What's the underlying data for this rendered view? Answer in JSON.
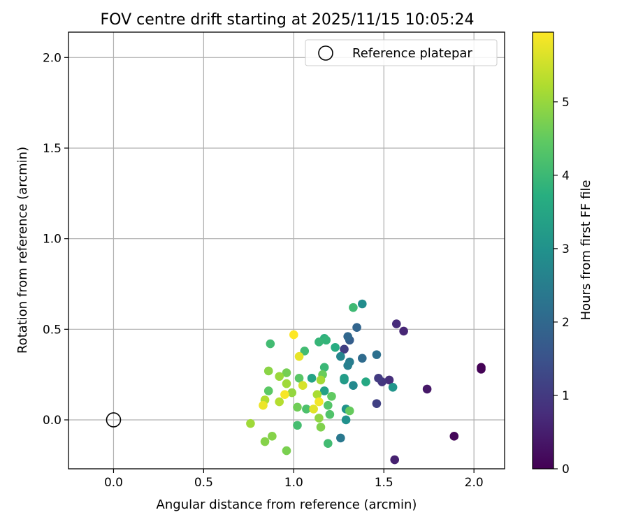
{
  "chart_data": {
    "type": "scatter",
    "title": "FOV centre drift starting at 2025/11/15 10:05:24",
    "xlabel": "Angular distance from reference (arcmin)",
    "ylabel": "Rotation from reference (arcmin)",
    "xlim": [
      -0.25,
      2.17
    ],
    "ylim": [
      -0.27,
      2.14
    ],
    "xticks": [
      0.0,
      0.5,
      1.0,
      1.5,
      2.0
    ],
    "xtick_labels": [
      "0.0",
      "0.5",
      "1.0",
      "1.5",
      "2.0"
    ],
    "yticks": [
      0.0,
      0.5,
      1.0,
      1.5,
      2.0
    ],
    "ytick_labels": [
      "0.0",
      "0.5",
      "1.0",
      "1.5",
      "2.0"
    ],
    "grid": true,
    "legend": {
      "placement": "top-right",
      "entries": [
        {
          "label": "Reference platepar",
          "marker": "open-circle",
          "color": "#000000"
        }
      ]
    },
    "reference_point": {
      "x": 0.0,
      "y": 0.0
    },
    "colorbar": {
      "label": "Hours from first FF file",
      "colormap": "viridis",
      "range": [
        0,
        5.95
      ],
      "ticks": [
        0,
        1,
        2,
        3,
        4,
        5
      ],
      "tick_labels": [
        "0",
        "1",
        "2",
        "3",
        "4",
        "5"
      ]
    },
    "points": [
      {
        "x": 2.04,
        "y": 0.29,
        "t": 0.0
      },
      {
        "x": 2.04,
        "y": 0.28,
        "t": 0.03
      },
      {
        "x": 1.89,
        "y": -0.09,
        "t": 0.1
      },
      {
        "x": 1.74,
        "y": 0.17,
        "t": 0.4
      },
      {
        "x": 1.56,
        "y": -0.22,
        "t": 0.55
      },
      {
        "x": 1.61,
        "y": 0.49,
        "t": 0.65
      },
      {
        "x": 1.57,
        "y": 0.53,
        "t": 0.75
      },
      {
        "x": 1.53,
        "y": 0.22,
        "t": 0.8
      },
      {
        "x": 1.49,
        "y": 0.21,
        "t": 0.95
      },
      {
        "x": 1.47,
        "y": 0.23,
        "t": 1.05
      },
      {
        "x": 1.46,
        "y": 0.09,
        "t": 1.15
      },
      {
        "x": 1.28,
        "y": 0.39,
        "t": 1.1
      },
      {
        "x": 1.31,
        "y": 0.44,
        "t": 1.8
      },
      {
        "x": 1.35,
        "y": 0.51,
        "t": 1.95
      },
      {
        "x": 1.3,
        "y": 0.46,
        "t": 2.0
      },
      {
        "x": 1.38,
        "y": 0.34,
        "t": 2.1
      },
      {
        "x": 1.46,
        "y": 0.36,
        "t": 2.2
      },
      {
        "x": 1.26,
        "y": -0.1,
        "t": 2.4
      },
      {
        "x": 1.31,
        "y": 0.32,
        "t": 2.5
      },
      {
        "x": 1.3,
        "y": 0.3,
        "t": 2.6
      },
      {
        "x": 1.26,
        "y": 0.35,
        "t": 2.7
      },
      {
        "x": 1.33,
        "y": 0.19,
        "t": 2.8
      },
      {
        "x": 1.38,
        "y": 0.64,
        "t": 2.9
      },
      {
        "x": 1.29,
        "y": 0.0,
        "t": 3.0
      },
      {
        "x": 1.29,
        "y": 0.06,
        "t": 3.05
      },
      {
        "x": 1.55,
        "y": 0.18,
        "t": 3.1
      },
      {
        "x": 1.28,
        "y": 0.22,
        "t": 3.2
      },
      {
        "x": 1.28,
        "y": 0.23,
        "t": 3.3
      },
      {
        "x": 1.17,
        "y": 0.16,
        "t": 3.4
      },
      {
        "x": 1.1,
        "y": 0.23,
        "t": 3.45
      },
      {
        "x": 1.4,
        "y": 0.21,
        "t": 3.6
      },
      {
        "x": 1.23,
        "y": 0.4,
        "t": 3.7
      },
      {
        "x": 1.17,
        "y": 0.45,
        "t": 3.8
      },
      {
        "x": 1.18,
        "y": 0.44,
        "t": 3.9
      },
      {
        "x": 1.14,
        "y": 0.43,
        "t": 3.95
      },
      {
        "x": 1.17,
        "y": 0.29,
        "t": 4.0
      },
      {
        "x": 1.06,
        "y": 0.38,
        "t": 4.1
      },
      {
        "x": 1.33,
        "y": 0.62,
        "t": 4.05
      },
      {
        "x": 0.87,
        "y": 0.42,
        "t": 4.1
      },
      {
        "x": 1.19,
        "y": -0.13,
        "t": 4.1
      },
      {
        "x": 1.02,
        "y": -0.03,
        "t": 4.15
      },
      {
        "x": 1.07,
        "y": 0.06,
        "t": 4.25
      },
      {
        "x": 1.2,
        "y": 0.03,
        "t": 4.3
      },
      {
        "x": 1.19,
        "y": 0.08,
        "t": 4.35
      },
      {
        "x": 1.03,
        "y": 0.23,
        "t": 4.4
      },
      {
        "x": 0.86,
        "y": 0.16,
        "t": 4.45
      },
      {
        "x": 1.21,
        "y": 0.13,
        "t": 4.5
      },
      {
        "x": 1.31,
        "y": 0.05,
        "t": 4.55
      },
      {
        "x": 1.16,
        "y": 0.25,
        "t": 4.6
      },
      {
        "x": 1.02,
        "y": 0.07,
        "t": 4.65
      },
      {
        "x": 0.96,
        "y": 0.26,
        "t": 4.7
      },
      {
        "x": 0.96,
        "y": -0.17,
        "t": 4.75
      },
      {
        "x": 1.15,
        "y": -0.04,
        "t": 4.8
      },
      {
        "x": 0.84,
        "y": -0.12,
        "t": 4.85
      },
      {
        "x": 0.88,
        "y": -0.09,
        "t": 4.85
      },
      {
        "x": 0.86,
        "y": 0.27,
        "t": 4.9
      },
      {
        "x": 1.14,
        "y": 0.01,
        "t": 4.95
      },
      {
        "x": 0.99,
        "y": 0.15,
        "t": 5.0
      },
      {
        "x": 0.92,
        "y": 0.24,
        "t": 5.05
      },
      {
        "x": 0.96,
        "y": 0.2,
        "t": 5.1
      },
      {
        "x": 0.76,
        "y": -0.02,
        "t": 5.1
      },
      {
        "x": 1.15,
        "y": 0.22,
        "t": 5.15
      },
      {
        "x": 1.13,
        "y": 0.14,
        "t": 5.2
      },
      {
        "x": 0.84,
        "y": 0.11,
        "t": 5.25
      },
      {
        "x": 0.92,
        "y": 0.1,
        "t": 5.3
      },
      {
        "x": 1.05,
        "y": 0.19,
        "t": 5.6
      },
      {
        "x": 1.11,
        "y": 0.06,
        "t": 5.7
      },
      {
        "x": 1.03,
        "y": 0.35,
        "t": 5.75
      },
      {
        "x": 0.83,
        "y": 0.08,
        "t": 5.8
      },
      {
        "x": 1.14,
        "y": 0.1,
        "t": 5.85
      },
      {
        "x": 0.95,
        "y": 0.14,
        "t": 5.9
      },
      {
        "x": 1.0,
        "y": 0.47,
        "t": 5.95
      }
    ]
  }
}
